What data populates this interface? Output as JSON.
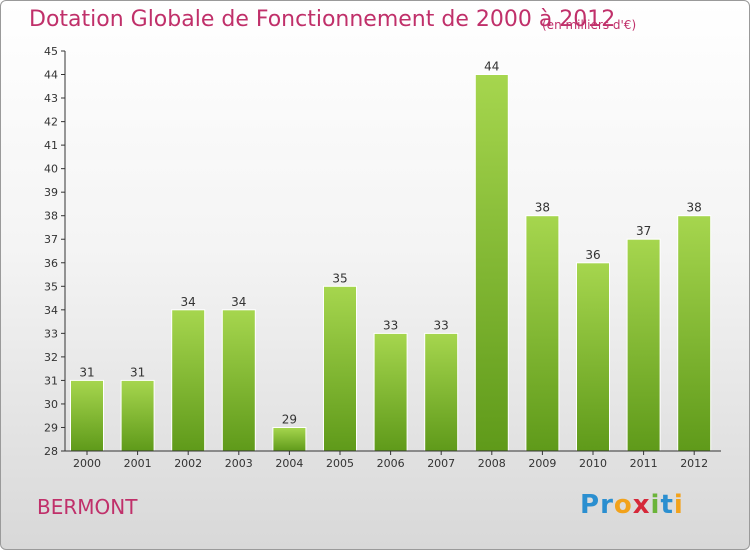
{
  "chart_data": {
    "type": "bar",
    "title": "Dotation Globale de Fonctionnement de 2000 à 2012",
    "subtitle": "(en milliers d'€)",
    "categories": [
      "2000",
      "2001",
      "2002",
      "2003",
      "2004",
      "2005",
      "2006",
      "2007",
      "2008",
      "2009",
      "2010",
      "2011",
      "2012"
    ],
    "values": [
      31,
      31,
      34,
      34,
      29,
      35,
      33,
      33,
      44,
      38,
      36,
      37,
      38
    ],
    "ylim": [
      28,
      45
    ],
    "yticks": [
      28,
      29,
      30,
      31,
      32,
      33,
      34,
      35,
      36,
      37,
      38,
      39,
      40,
      41,
      42,
      43,
      44,
      45
    ],
    "grid": false,
    "bar_color": "#7fbf2e",
    "bar_color_light": "#a6d64e",
    "bar_color_dark": "#5f9a1a"
  },
  "commune": "BERMONT",
  "logo": {
    "letters": [
      "P",
      "r",
      "o",
      "x",
      "i",
      "t",
      "i"
    ],
    "colors": {
      "blue": "#2b8fd0",
      "orange": "#f2a21b",
      "red": "#d6283a",
      "green": "#6bb43a"
    }
  },
  "colors": {
    "title": "#c0306a"
  }
}
